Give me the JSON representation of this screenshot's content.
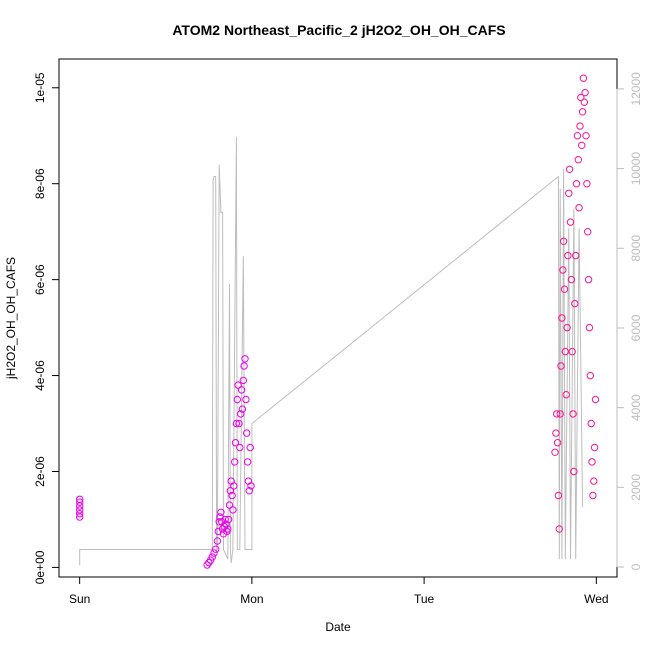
{
  "chart_data": {
    "type": "scatter",
    "title": "ATOM2 Northeast_Pacific_2 jH2O2_OH_OH_CAFS",
    "xlabel": "Date",
    "ylabel": "jH2O2_OH_OH_CAFS",
    "x_ticks": [
      {
        "value": 0,
        "label": "Sun"
      },
      {
        "value": 1,
        "label": "Mon"
      },
      {
        "value": 2,
        "label": "Tue"
      },
      {
        "value": 3,
        "label": "Wed"
      }
    ],
    "xlim": [
      -0.12,
      3.12
    ],
    "ylim": [
      -2e-07,
      1.06e-05
    ],
    "y_ticks": [
      {
        "value": 0,
        "label": "0e+00"
      },
      {
        "value": 2e-06,
        "label": "2e-06"
      },
      {
        "value": 4e-06,
        "label": "4e-06"
      },
      {
        "value": 6e-06,
        "label": "6e-06"
      },
      {
        "value": 8e-06,
        "label": "8e-06"
      },
      {
        "value": 1e-05,
        "label": "1e-05"
      }
    ],
    "y2lim": [
      -250,
      12750
    ],
    "y2_ticks": [
      {
        "value": 0,
        "label": "0"
      },
      {
        "value": 2000,
        "label": "2000"
      },
      {
        "value": 4000,
        "label": "4000"
      },
      {
        "value": 6000,
        "label": "6000"
      },
      {
        "value": 8000,
        "label": "8000"
      },
      {
        "value": 10000,
        "label": "10000"
      },
      {
        "value": 12000,
        "label": "12000"
      }
    ],
    "colors": {
      "day_mon": "#ee00ee",
      "day_wed": "#ff1493",
      "altitude": "#bdbdbd"
    },
    "series": [
      {
        "points": [
          [
            0.0,
            1.05e-06
          ],
          [
            0.0,
            1.12e-06
          ],
          [
            0.0,
            1.2e-06
          ],
          [
            0.0,
            1.28e-06
          ],
          [
            0.0,
            1.36e-06
          ],
          [
            0.0,
            1.42e-06
          ],
          [
            0.74,
            5e-08
          ],
          [
            0.75,
            1e-07
          ],
          [
            0.76,
            1.5e-07
          ],
          [
            0.77,
            2.2e-07
          ],
          [
            0.78,
            3e-07
          ],
          [
            0.79,
            3.8e-07
          ],
          [
            0.8,
            5.5e-07
          ],
          [
            0.805,
            7.5e-07
          ],
          [
            0.81,
            9.5e-07
          ],
          [
            0.815,
            1.05e-06
          ],
          [
            0.82,
            1.15e-06
          ],
          [
            0.825,
            9.5e-07
          ],
          [
            0.83,
            8e-07
          ],
          [
            0.835,
            7e-07
          ],
          [
            0.84,
            8.5e-07
          ],
          [
            0.845,
            1e-06
          ],
          [
            0.85,
            9e-07
          ],
          [
            0.855,
            7.5e-07
          ],
          [
            0.86,
            8e-07
          ],
          [
            0.865,
            1e-06
          ],
          [
            0.87,
            1.3e-06
          ],
          [
            0.875,
            1.6e-06
          ],
          [
            0.88,
            1.8e-06
          ],
          [
            0.885,
            1.5e-06
          ],
          [
            0.89,
            1.2e-06
          ],
          [
            0.895,
            1.7e-06
          ],
          [
            0.9,
            2.2e-06
          ],
          [
            0.905,
            2.6e-06
          ],
          [
            0.91,
            3e-06
          ],
          [
            0.915,
            3.5e-06
          ],
          [
            0.92,
            3.8e-06
          ],
          [
            0.925,
            3e-06
          ],
          [
            0.93,
            2.5e-06
          ],
          [
            0.935,
            3.2e-06
          ],
          [
            0.94,
            3.7e-06
          ],
          [
            0.945,
            3.3e-06
          ],
          [
            0.95,
            3.9e-06
          ],
          [
            0.955,
            4.2e-06
          ],
          [
            0.96,
            4.35e-06
          ],
          [
            0.965,
            3.5e-06
          ],
          [
            0.97,
            2.8e-06
          ],
          [
            0.975,
            2.2e-06
          ],
          [
            0.98,
            1.8e-06
          ],
          [
            0.985,
            1.6e-06
          ],
          [
            0.99,
            2.5e-06
          ],
          [
            0.995,
            1.7e-06
          ]
        ]
      },
      {
        "points": [
          [
            2.76,
            2.4e-06
          ],
          [
            2.765,
            2.8e-06
          ],
          [
            2.77,
            3.2e-06
          ],
          [
            2.775,
            2.6e-06
          ],
          [
            2.78,
            1.5e-06
          ],
          [
            2.785,
            8e-07
          ],
          [
            2.79,
            3.2e-06
          ],
          [
            2.795,
            4.2e-06
          ],
          [
            2.8,
            5.2e-06
          ],
          [
            2.805,
            6.2e-06
          ],
          [
            2.81,
            6.8e-06
          ],
          [
            2.815,
            5.8e-06
          ],
          [
            2.82,
            4.5e-06
          ],
          [
            2.825,
            3.6e-06
          ],
          [
            2.83,
            5e-06
          ],
          [
            2.835,
            6.5e-06
          ],
          [
            2.84,
            7.8e-06
          ],
          [
            2.845,
            8.3e-06
          ],
          [
            2.85,
            7.2e-06
          ],
          [
            2.855,
            6e-06
          ],
          [
            2.86,
            4.5e-06
          ],
          [
            2.865,
            3.2e-06
          ],
          [
            2.87,
            2e-06
          ],
          [
            2.875,
            5.5e-06
          ],
          [
            2.88,
            6.5e-06
          ],
          [
            2.885,
            8e-06
          ],
          [
            2.89,
            9e-06
          ],
          [
            2.895,
            8.5e-06
          ],
          [
            2.9,
            7.5e-06
          ],
          [
            2.905,
            9.2e-06
          ],
          [
            2.91,
            9.8e-06
          ],
          [
            2.915,
            8.8e-06
          ],
          [
            2.92,
            9.5e-06
          ],
          [
            2.925,
            1.02e-05
          ],
          [
            2.93,
            9.7e-06
          ],
          [
            2.935,
            9.9e-06
          ],
          [
            2.94,
            9e-06
          ],
          [
            2.945,
            8e-06
          ],
          [
            2.95,
            7e-06
          ],
          [
            2.955,
            6e-06
          ],
          [
            2.96,
            5e-06
          ],
          [
            2.965,
            4e-06
          ],
          [
            2.97,
            3e-06
          ],
          [
            2.975,
            2.2e-06
          ],
          [
            2.98,
            1.5e-06
          ],
          [
            2.985,
            1.8e-06
          ],
          [
            2.99,
            2.5e-06
          ],
          [
            2.995,
            3.5e-06
          ]
        ]
      }
    ],
    "altitude": {
      "points": [
        [
          0.0,
          40
        ],
        [
          0.0,
          440
        ],
        [
          0.75,
          440
        ],
        [
          0.77,
          440
        ],
        [
          0.775,
          9700
        ],
        [
          0.78,
          9800
        ],
        [
          0.79,
          9800
        ],
        [
          0.795,
          440
        ],
        [
          0.8,
          440
        ],
        [
          0.81,
          10100
        ],
        [
          0.82,
          8900
        ],
        [
          0.83,
          8900
        ],
        [
          0.835,
          440
        ],
        [
          0.86,
          200
        ],
        [
          0.87,
          7100
        ],
        [
          0.875,
          440
        ],
        [
          0.88,
          100
        ],
        [
          0.89,
          440
        ],
        [
          0.91,
          10800
        ],
        [
          0.915,
          440
        ],
        [
          0.93,
          440
        ],
        [
          0.95,
          7800
        ],
        [
          0.96,
          440
        ],
        [
          1.0,
          440
        ],
        [
          1.0,
          3600
        ],
        [
          2.78,
          9800
        ],
        [
          2.785,
          200
        ],
        [
          2.79,
          9500
        ],
        [
          2.8,
          200
        ],
        [
          2.81,
          10000
        ],
        [
          2.82,
          200
        ],
        [
          2.84,
          8500
        ],
        [
          2.85,
          200
        ],
        [
          2.87,
          9000
        ],
        [
          2.88,
          200
        ],
        [
          2.9,
          8500
        ],
        [
          2.92,
          1500
        ]
      ]
    }
  }
}
